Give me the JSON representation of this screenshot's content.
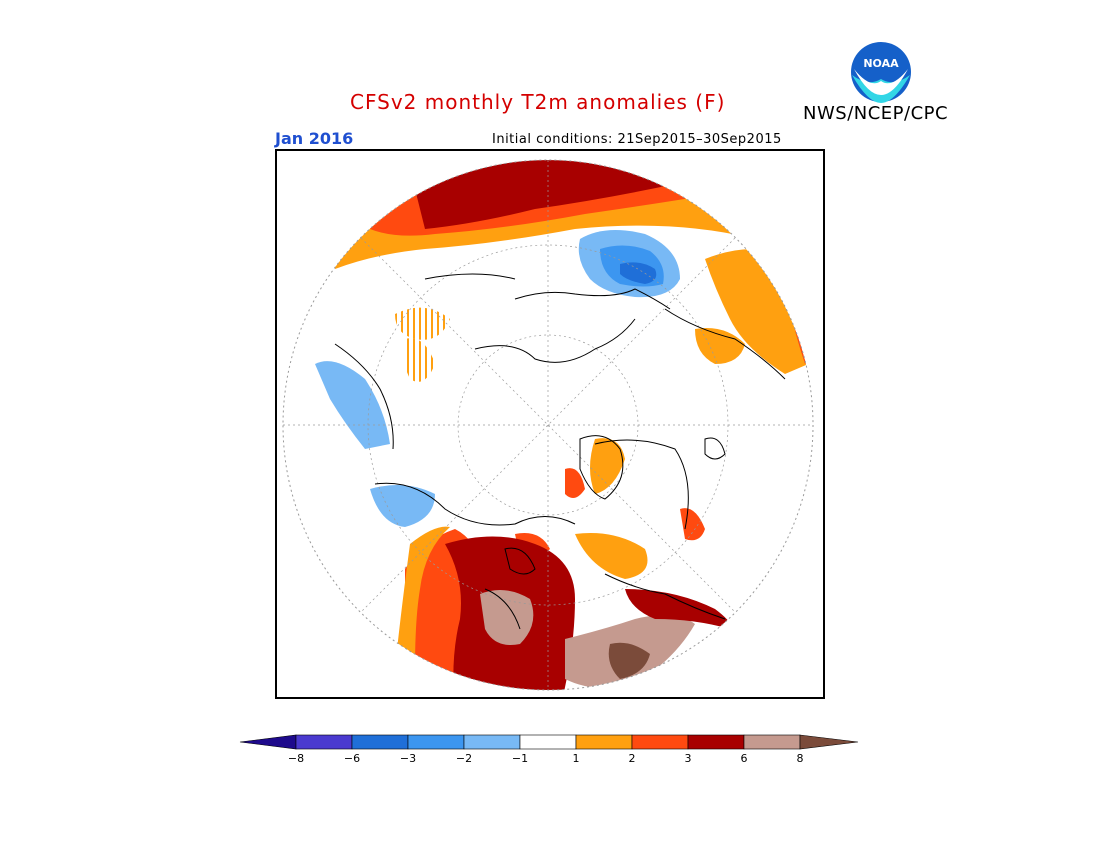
{
  "header": {
    "title": "CFSv2 monthly T2m anomalies (F)",
    "target_month": "Jan 2016",
    "initial_conditions": "Initial conditions: 21Sep2015–30Sep2015",
    "agency": "NWS/NCEP/CPC",
    "logo_text": "NOAA"
  },
  "colors": {
    "title": "#d40000",
    "month": "#1f4fd0",
    "agency": "#000000",
    "minus8_under": "#1e0a8c",
    "minus8_to_minus6": "#4a3acf",
    "minus6_to_minus3": "#1f6fd8",
    "minus3_to_minus2": "#3c96f0",
    "minus2_to_minus1": "#78b9f5",
    "neutral": "#ffffff",
    "plus1_to_plus2": "#ffa010",
    "plus2_to_plus3": "#ff4a10",
    "plus3_to_plus6": "#a80000",
    "plus6_to_plus8": "#c59a8f",
    "plus8_over": "#7b4b3a"
  },
  "legend": {
    "ticks": [
      "−8",
      "−6",
      "−3",
      "−2",
      "−1",
      "1",
      "2",
      "3",
      "6",
      "8"
    ]
  },
  "map": {
    "projection": "north-polar-stereographic",
    "dominant_features": "warm anomalies over Canada and northern Siberia; cool anomaly over Scandinavia-Barents region"
  }
}
